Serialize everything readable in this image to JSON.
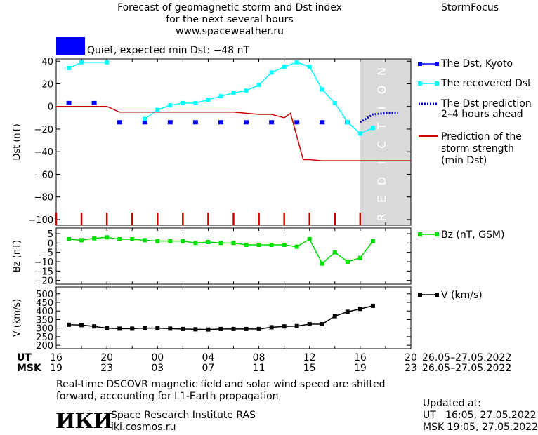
{
  "header": {
    "title_line1": "Forecast of geomagnetic storm and Dst index",
    "title_line2": "for the next several hours",
    "url": "www.spaceweather.ru",
    "brand": "StormFocus",
    "status_text": "Quiet, expected min Dst: −48 nT",
    "status_color": "#0000ff"
  },
  "legend": {
    "dst_kyoto": "The Dst, Kyoto",
    "dst_recovered": "The recovered Dst",
    "dst_prediction_1": "The Dst prediction",
    "dst_prediction_2": "2–4 hours ahead",
    "storm_1": "Prediction of the",
    "storm_2": "storm strength",
    "storm_3": "(min Dst)",
    "bz": "Bz (nT, GSM)",
    "v": "V (km/s)"
  },
  "prediction_label": "PREDICTION",
  "axes": {
    "ut_label": "UT",
    "msk_label": "MSK",
    "ut_ticks": [
      "16",
      "20",
      "00",
      "04",
      "08",
      "12",
      "16",
      "20"
    ],
    "msk_ticks": [
      "19",
      "23",
      "03",
      "07",
      "11",
      "15",
      "19",
      "23"
    ],
    "date_range_ut": "26.05–27.05.2022",
    "date_range_msk": "26.05–27.05.2022"
  },
  "footer": {
    "note_line1": "Real-time DSCOVR magnetic field and solar wind speed are shifted",
    "note_line2": "forward, accounting for L1-Earth propagation",
    "logo": "ИКИ",
    "institute": "Space Research Institute RAS",
    "site": "iki.cosmos.ru",
    "updated_label": "Updated at:",
    "updated_ut": "UT   16:05, 27.05.2022",
    "updated_msk": "MSK 19:05, 27.05.2022"
  },
  "colors": {
    "kyoto": "#0000ff",
    "recovered": "#00ffff",
    "prediction": "#0000cc",
    "storm": "#cc0000",
    "bz": "#00dd00",
    "v": "#000000",
    "prediction_bg": "#d9d9d9"
  },
  "chart_data": [
    {
      "type": "line",
      "ylabel": "Dst (nT)",
      "xlim": [
        0,
        28
      ],
      "ylim": [
        -105,
        42
      ],
      "yticks": [
        40,
        20,
        0,
        -20,
        -40,
        -60,
        -80,
        -100
      ],
      "prediction_start": 24,
      "series": [
        {
          "name": "The Dst, Kyoto",
          "style": "square",
          "x": [
            1,
            3,
            5,
            7,
            9,
            11,
            13,
            15,
            17,
            19,
            21,
            23
          ],
          "y": [
            3,
            3,
            -14,
            -14,
            -14,
            -14,
            -14,
            -14,
            -14,
            -14,
            -14,
            -14
          ]
        },
        {
          "name": "The recovered Dst",
          "style": "line-square",
          "x": [
            1,
            2,
            4,
            7,
            8,
            9,
            10,
            11,
            12,
            13,
            14,
            15,
            16,
            17,
            18,
            19,
            20,
            21,
            22,
            23,
            24,
            25
          ],
          "y": [
            34,
            39,
            39,
            -11,
            -3,
            1,
            3,
            3,
            6,
            9,
            12,
            14,
            19,
            30,
            35,
            39,
            35,
            15,
            3,
            -14,
            -24,
            -19
          ],
          "gaps_after": [
            2
          ]
        },
        {
          "name": "The Dst prediction",
          "style": "dotted",
          "x": [
            24,
            25,
            26,
            27
          ],
          "y": [
            -14,
            -7,
            -6,
            -6
          ]
        },
        {
          "name": "Prediction of the storm strength",
          "style": "line",
          "x": [
            0,
            4,
            5,
            14,
            16,
            17,
            18,
            18.5,
            19.5,
            20,
            21,
            22,
            28
          ],
          "y": [
            0,
            0,
            -5,
            -5,
            -7,
            -7,
            -10,
            -6,
            -47,
            -47,
            -48,
            -48,
            -48
          ]
        }
      ],
      "markers": {
        "x": [
          0,
          2,
          4,
          6,
          8,
          10,
          12,
          14,
          16,
          18,
          20,
          22,
          24
        ]
      }
    },
    {
      "type": "line",
      "ylabel": "Bz (nT)",
      "xlim": [
        0,
        28
      ],
      "ylim": [
        -22,
        8
      ],
      "yticks": [
        5,
        0,
        -5,
        -10,
        -15,
        -20
      ],
      "series": [
        {
          "name": "Bz (nT, GSM)",
          "x": [
            1,
            2,
            3,
            4,
            5,
            6,
            7,
            8,
            9,
            10,
            11,
            12,
            13,
            14,
            15,
            16,
            17,
            18,
            19,
            20,
            21,
            22,
            23,
            24,
            25
          ],
          "y": [
            2,
            1.5,
            2.5,
            3,
            2,
            2,
            1.5,
            1,
            1,
            1,
            0,
            0.5,
            0,
            0,
            -1,
            -1,
            -1,
            -1,
            -2,
            2,
            -11,
            -5,
            -10,
            -8,
            1
          ]
        }
      ]
    },
    {
      "type": "line",
      "ylabel": "V (km/s)",
      "xlim": [
        0,
        28
      ],
      "ylim": [
        180,
        540
      ],
      "yticks": [
        500,
        450,
        400,
        350,
        300,
        250,
        200
      ],
      "series": [
        {
          "name": "V (km/s)",
          "x": [
            1,
            2,
            3,
            4,
            5,
            6,
            7,
            8,
            9,
            10,
            11,
            12,
            13,
            14,
            15,
            16,
            17,
            18,
            19,
            20,
            21,
            22,
            23,
            24,
            25
          ],
          "y": [
            320,
            318,
            310,
            300,
            297,
            297,
            300,
            300,
            297,
            295,
            293,
            292,
            295,
            295,
            295,
            295,
            305,
            310,
            312,
            323,
            323,
            370,
            395,
            412,
            430
          ]
        }
      ]
    }
  ]
}
